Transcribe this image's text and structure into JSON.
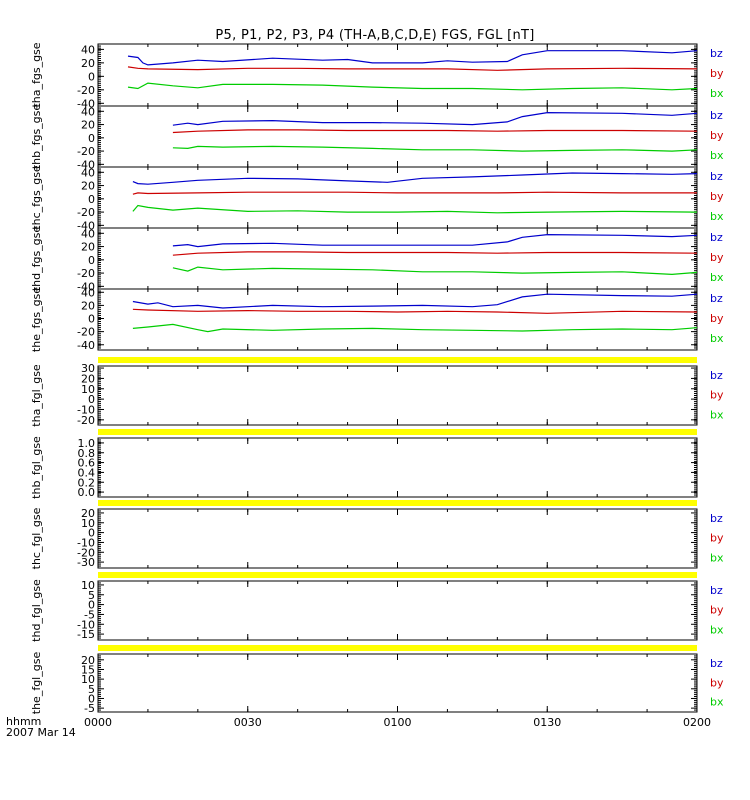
{
  "page_title": "P5, P1, P2, P3, P4 (TH-A,B,C,D,E) FGS, FGL [nT]",
  "footer": {
    "time_label": "hhmm",
    "date_label": "2007 Mar 14"
  },
  "colors": {
    "bz": "#0000cc",
    "by": "#cc0000",
    "bx": "#00cc00",
    "bar": "#ffff00",
    "axis": "#000000"
  },
  "chart_data": [
    {
      "type": "line",
      "ylabel": "tha_fgs_gse",
      "xlim": [
        "00:00",
        "02:00"
      ],
      "ylim": [
        -44,
        48
      ],
      "y_ticks": [
        40,
        20,
        0,
        -20,
        -40
      ],
      "x_ticks": [
        "0000",
        "0030",
        "0100",
        "0130",
        "0200"
      ],
      "legend": [
        "bz",
        "by",
        "bx"
      ],
      "series": [
        {
          "name": "bz",
          "x": [
            "00:06",
            "00:08",
            "00:09",
            "00:10",
            "00:15",
            "00:20",
            "00:25",
            "00:35",
            "00:45",
            "00:50",
            "00:55",
            "01:00",
            "01:05",
            "01:10",
            "01:15",
            "01:22",
            "01:25",
            "01:30",
            "01:45",
            "01:55",
            "02:00"
          ],
          "values": [
            30,
            28,
            20,
            17,
            20,
            24,
            22,
            27,
            24,
            25,
            20,
            20,
            20,
            23,
            21,
            22,
            32,
            38,
            38,
            35,
            38
          ]
        },
        {
          "name": "by",
          "x": [
            "00:06",
            "00:08",
            "00:10",
            "00:20",
            "00:30",
            "00:40",
            "00:50",
            "01:00",
            "01:10",
            "01:20",
            "01:30",
            "01:45",
            "02:00"
          ],
          "values": [
            14,
            12,
            11,
            10,
            12,
            12,
            11,
            11,
            11,
            9,
            11,
            12,
            11
          ]
        },
        {
          "name": "bx",
          "x": [
            "00:06",
            "00:08",
            "00:10",
            "00:15",
            "00:20",
            "00:25",
            "00:35",
            "00:45",
            "00:55",
            "01:05",
            "01:15",
            "01:25",
            "01:35",
            "01:45",
            "01:55",
            "02:00"
          ],
          "values": [
            -16,
            -18,
            -10,
            -14,
            -17,
            -12,
            -12,
            -13,
            -16,
            -18,
            -18,
            -20,
            -18,
            -17,
            -20,
            -18
          ]
        }
      ]
    },
    {
      "type": "line",
      "ylabel": "thb_fgs_gse",
      "xlim": [
        "00:00",
        "02:00"
      ],
      "ylim": [
        -44,
        48
      ],
      "y_ticks": [
        40,
        20,
        0,
        -20,
        -40
      ],
      "x_ticks": [
        "0000",
        "0030",
        "0100",
        "0130",
        "0200"
      ],
      "legend": [
        "bz",
        "by",
        "bx"
      ],
      "series": [
        {
          "name": "bz",
          "x": [
            "00:15",
            "00:18",
            "00:20",
            "00:25",
            "00:35",
            "00:45",
            "00:55",
            "01:05",
            "01:15",
            "01:22",
            "01:25",
            "01:30",
            "01:45",
            "01:55",
            "02:00"
          ],
          "values": [
            19,
            22,
            20,
            25,
            26,
            23,
            23,
            22,
            20,
            24,
            32,
            38,
            37,
            34,
            37
          ]
        },
        {
          "name": "by",
          "x": [
            "00:15",
            "00:20",
            "00:30",
            "00:40",
            "00:50",
            "01:00",
            "01:10",
            "01:20",
            "01:30",
            "01:45",
            "02:00"
          ],
          "values": [
            8,
            10,
            12,
            12,
            11,
            11,
            11,
            10,
            11,
            11,
            10
          ]
        },
        {
          "name": "bx",
          "x": [
            "00:15",
            "00:18",
            "00:20",
            "00:25",
            "00:35",
            "00:45",
            "00:55",
            "01:05",
            "01:15",
            "01:25",
            "01:35",
            "01:45",
            "01:55",
            "02:00"
          ],
          "values": [
            -15,
            -16,
            -13,
            -14,
            -13,
            -14,
            -16,
            -18,
            -18,
            -20,
            -19,
            -18,
            -20,
            -18
          ]
        }
      ]
    },
    {
      "type": "line",
      "ylabel": "thc_fgs_gse",
      "xlim": [
        "00:00",
        "02:00"
      ],
      "ylim": [
        -44,
        48
      ],
      "y_ticks": [
        40,
        20,
        0,
        -20,
        -40
      ],
      "x_ticks": [
        "0000",
        "0030",
        "0100",
        "0130",
        "0200"
      ],
      "legend": [
        "bz",
        "by",
        "bx"
      ],
      "series": [
        {
          "name": "bz",
          "x": [
            "00:07",
            "00:08",
            "00:10",
            "00:15",
            "00:20",
            "00:30",
            "00:40",
            "00:50",
            "00:58",
            "01:05",
            "01:15",
            "01:25",
            "01:35",
            "01:45",
            "01:55",
            "02:00"
          ],
          "values": [
            26,
            23,
            22,
            25,
            28,
            31,
            30,
            27,
            25,
            31,
            33,
            36,
            39,
            38,
            37,
            38
          ]
        },
        {
          "name": "by",
          "x": [
            "00:07",
            "00:08",
            "00:10",
            "00:20",
            "00:30",
            "00:40",
            "00:50",
            "01:00",
            "01:10",
            "01:20",
            "01:30",
            "01:45",
            "02:00"
          ],
          "values": [
            7,
            9,
            8,
            9,
            10,
            10,
            10,
            9,
            9,
            9,
            10,
            9,
            9
          ]
        },
        {
          "name": "bx",
          "x": [
            "00:07",
            "00:08",
            "00:10",
            "00:15",
            "00:20",
            "00:30",
            "00:40",
            "00:50",
            "01:00",
            "01:10",
            "01:20",
            "01:30",
            "01:45",
            "02:00"
          ],
          "values": [
            -19,
            -10,
            -13,
            -17,
            -14,
            -19,
            -18,
            -20,
            -20,
            -19,
            -21,
            -20,
            -19,
            -20
          ]
        }
      ]
    },
    {
      "type": "line",
      "ylabel": "thd_fgs_gse",
      "xlim": [
        "00:00",
        "02:00"
      ],
      "ylim": [
        -44,
        48
      ],
      "y_ticks": [
        40,
        20,
        0,
        -20,
        -40
      ],
      "x_ticks": [
        "0000",
        "0030",
        "0100",
        "0130",
        "0200"
      ],
      "legend": [
        "bz",
        "by",
        "bx"
      ],
      "series": [
        {
          "name": "bz",
          "x": [
            "00:15",
            "00:18",
            "00:20",
            "00:25",
            "00:35",
            "00:45",
            "00:55",
            "01:05",
            "01:15",
            "01:22",
            "01:25",
            "01:30",
            "01:45",
            "01:55",
            "02:00"
          ],
          "values": [
            21,
            23,
            20,
            24,
            25,
            22,
            22,
            22,
            22,
            27,
            34,
            38,
            37,
            35,
            37
          ]
        },
        {
          "name": "by",
          "x": [
            "00:15",
            "00:20",
            "00:30",
            "00:40",
            "00:50",
            "01:00",
            "01:10",
            "01:20",
            "01:30",
            "01:45",
            "02:00"
          ],
          "values": [
            7,
            10,
            12,
            12,
            11,
            11,
            11,
            10,
            11,
            11,
            10
          ]
        },
        {
          "name": "bx",
          "x": [
            "00:15",
            "00:18",
            "00:20",
            "00:25",
            "00:35",
            "00:45",
            "00:55",
            "01:05",
            "01:15",
            "01:25",
            "01:35",
            "01:45",
            "01:55",
            "02:00"
          ],
          "values": [
            -12,
            -17,
            -11,
            -15,
            -13,
            -14,
            -15,
            -18,
            -18,
            -20,
            -19,
            -18,
            -22,
            -19
          ]
        }
      ]
    },
    {
      "type": "line",
      "ylabel": "the_fgs_gse",
      "xlim": [
        "00:00",
        "02:00"
      ],
      "ylim": [
        -48,
        45
      ],
      "y_ticks": [
        40,
        20,
        0,
        -20,
        -40
      ],
      "x_ticks": [
        "0000",
        "0030",
        "0100",
        "0130",
        "0200"
      ],
      "legend": [
        "bz",
        "by",
        "bx"
      ],
      "series": [
        {
          "name": "bz",
          "x": [
            "00:07",
            "00:10",
            "00:12",
            "00:15",
            "00:20",
            "00:25",
            "00:35",
            "00:45",
            "00:55",
            "01:05",
            "01:15",
            "01:20",
            "01:25",
            "01:30",
            "01:45",
            "01:55",
            "02:00"
          ],
          "values": [
            26,
            22,
            24,
            18,
            20,
            16,
            20,
            18,
            19,
            20,
            18,
            21,
            33,
            37,
            35,
            34,
            37
          ]
        },
        {
          "name": "by",
          "x": [
            "00:07",
            "00:10",
            "00:20",
            "00:30",
            "00:40",
            "00:50",
            "01:00",
            "01:10",
            "01:20",
            "01:30",
            "01:45",
            "02:00"
          ],
          "values": [
            14,
            13,
            11,
            12,
            11,
            11,
            10,
            11,
            10,
            8,
            11,
            10
          ]
        },
        {
          "name": "bx",
          "x": [
            "00:07",
            "00:10",
            "00:15",
            "00:20",
            "00:22",
            "00:25",
            "00:35",
            "00:45",
            "00:55",
            "01:05",
            "01:15",
            "01:25",
            "01:35",
            "01:45",
            "01:55",
            "02:00"
          ],
          "values": [
            -15,
            -13,
            -9,
            -17,
            -20,
            -16,
            -18,
            -16,
            -15,
            -17,
            -18,
            -19,
            -17,
            -16,
            -17,
            -14
          ]
        }
      ]
    },
    {
      "type": "line",
      "ylabel": "tha_fgl_gse",
      "xlim": [
        "00:00",
        "02:00"
      ],
      "ylim": [
        -25,
        32
      ],
      "y_ticks": [
        30,
        20,
        10,
        0,
        -10,
        -20
      ],
      "x_ticks": [
        "0000",
        "0030",
        "0100",
        "0130",
        "0200"
      ],
      "legend": [
        "bz",
        "by",
        "bx"
      ],
      "series": []
    },
    {
      "type": "line",
      "ylabel": "thb_fgl_gse",
      "xlim": [
        "00:00",
        "02:00"
      ],
      "ylim": [
        -0.1,
        1.1
      ],
      "y_ticks": [
        1.0,
        0.8,
        0.6,
        0.4,
        0.2,
        0.0
      ],
      "y_tick_labels": [
        "1.0",
        "0.8",
        "0.6",
        "0.4",
        "0.2",
        "0.0"
      ],
      "x_ticks": [
        "0000",
        "0030",
        "0100",
        "0130",
        "0200"
      ],
      "legend": [],
      "series": []
    },
    {
      "type": "line",
      "ylabel": "thc_fgl_gse",
      "xlim": [
        "00:00",
        "02:00"
      ],
      "ylim": [
        -36,
        24
      ],
      "y_ticks": [
        20,
        10,
        0,
        -10,
        -20,
        -30
      ],
      "x_ticks": [
        "0000",
        "0030",
        "0100",
        "0130",
        "0200"
      ],
      "legend": [
        "bz",
        "by",
        "bx"
      ],
      "series": []
    },
    {
      "type": "line",
      "ylabel": "thd_fgl_gse",
      "xlim": [
        "00:00",
        "02:00"
      ],
      "ylim": [
        -18,
        12
      ],
      "y_ticks": [
        10,
        5,
        0,
        -5,
        -10,
        -15
      ],
      "x_ticks": [
        "0000",
        "0030",
        "0100",
        "0130",
        "0200"
      ],
      "legend": [
        "bz",
        "by",
        "bx"
      ],
      "series": []
    },
    {
      "type": "line",
      "ylabel": "the_fgl_gse",
      "xlim": [
        "00:00",
        "02:00"
      ],
      "ylim": [
        -7,
        23
      ],
      "y_ticks": [
        20,
        15,
        10,
        5,
        0,
        -5
      ],
      "x_ticks": [
        "0000",
        "0030",
        "0100",
        "0130",
        "0200"
      ],
      "legend": [
        "bz",
        "by",
        "bx"
      ],
      "series": []
    }
  ]
}
